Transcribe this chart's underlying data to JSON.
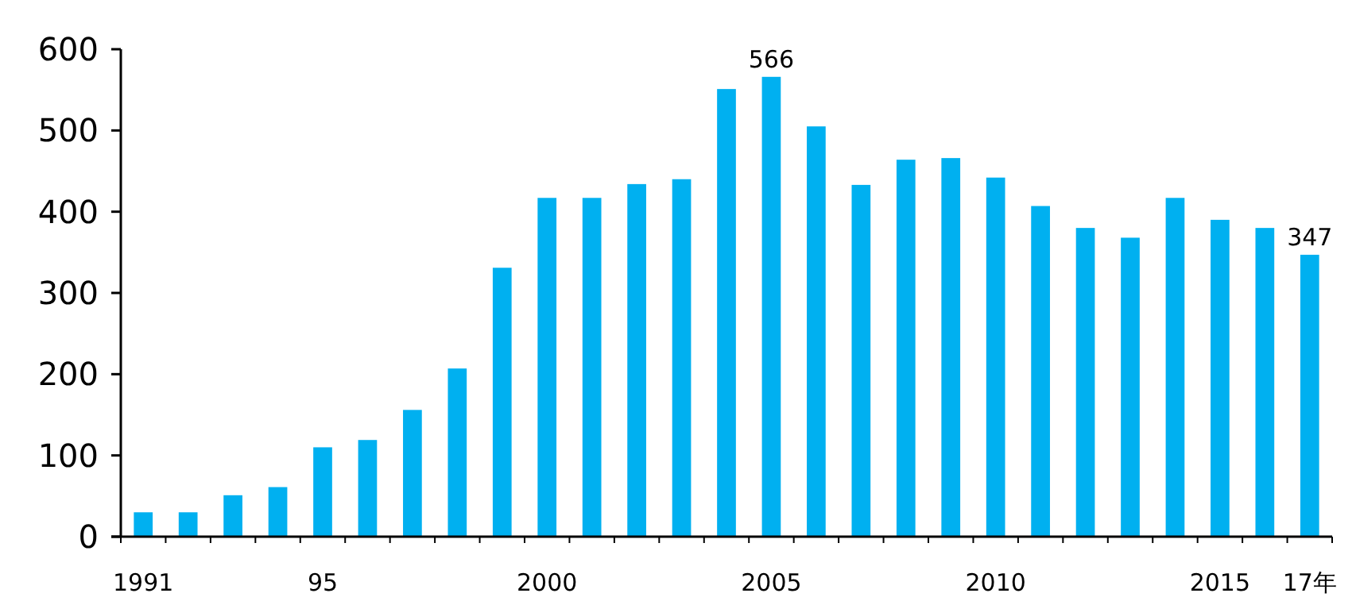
{
  "chart_data": {
    "type": "bar",
    "categories": [
      "1991",
      null,
      null,
      null,
      "95",
      null,
      null,
      null,
      null,
      "2000",
      null,
      null,
      null,
      null,
      "2005",
      null,
      null,
      null,
      null,
      "2010",
      null,
      null,
      null,
      null,
      "2015",
      null,
      "17年"
    ],
    "values": [
      30,
      30,
      51,
      61,
      110,
      119,
      156,
      207,
      331,
      417,
      417,
      434,
      440,
      551,
      566,
      505,
      433,
      464,
      466,
      442,
      407,
      380,
      368,
      417,
      390,
      380,
      347
    ],
    "value_labels": [
      null,
      null,
      null,
      null,
      null,
      null,
      null,
      null,
      null,
      null,
      null,
      null,
      null,
      null,
      "566",
      null,
      null,
      null,
      null,
      null,
      null,
      null,
      null,
      null,
      null,
      null,
      "347"
    ],
    "color": "#00b0f0",
    "ylim": [
      0,
      600
    ],
    "yticks": [
      0,
      100,
      200,
      300,
      400,
      500,
      600
    ],
    "grid": false
  }
}
